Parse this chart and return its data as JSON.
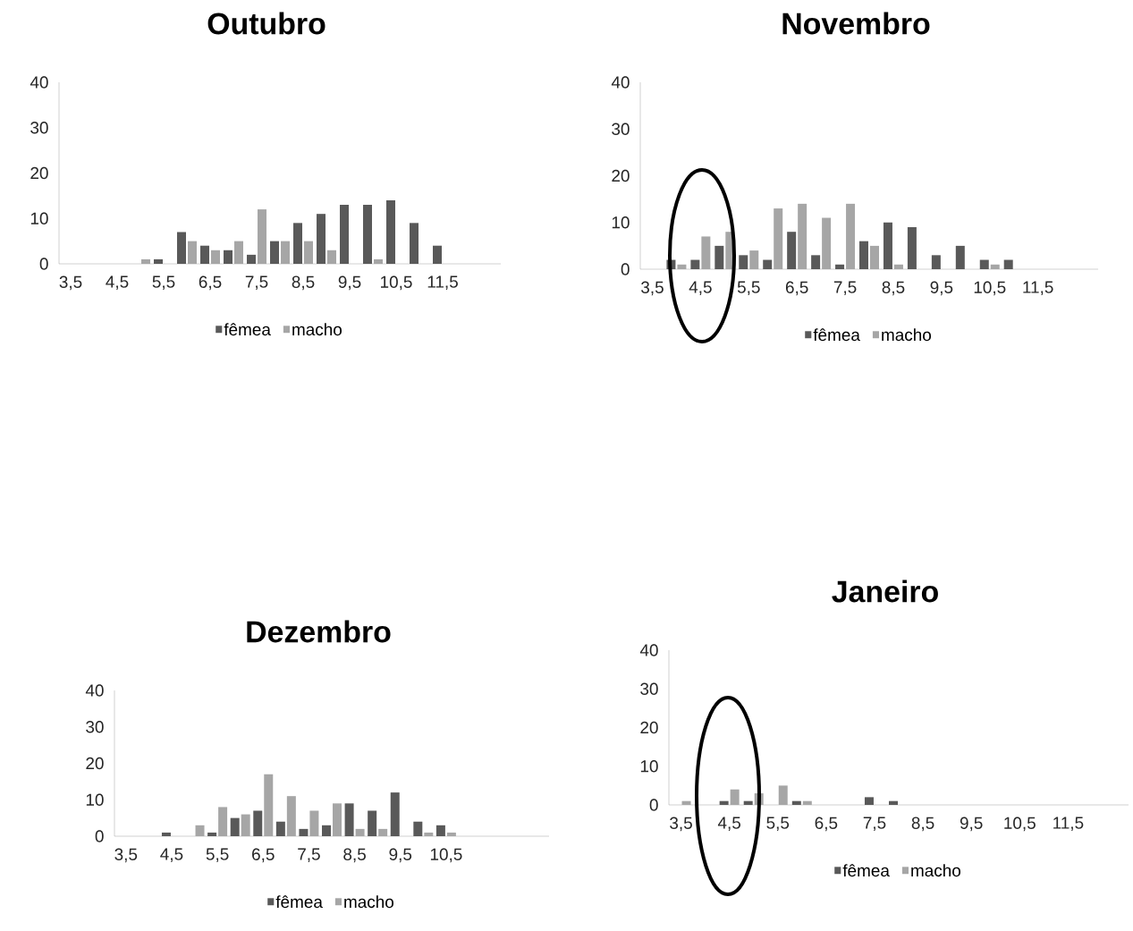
{
  "chart_data": [
    {
      "type": "bar",
      "title": "Outubro",
      "categories": [
        "3,5",
        null,
        "4,5",
        null,
        "5,5",
        null,
        "6,5",
        null,
        "7,5",
        null,
        "8,5",
        null,
        "9,5",
        null,
        "10,5",
        null,
        "11,5",
        null,
        null
      ],
      "series": [
        {
          "name": "fêmea",
          "color": "#595959",
          "values": [
            0,
            0,
            0,
            0,
            1,
            7,
            4,
            3,
            2,
            5,
            9,
            11,
            13,
            13,
            14,
            9,
            4,
            0,
            0
          ]
        },
        {
          "name": "macho",
          "color": "#a6a6a6",
          "values": [
            0,
            0,
            0,
            1,
            0,
            5,
            3,
            5,
            12,
            5,
            5,
            3,
            0,
            1,
            0,
            0,
            0,
            0,
            0
          ]
        }
      ],
      "ylim": [
        0,
        40
      ],
      "yticks": [
        0,
        10,
        20,
        30,
        40
      ],
      "legend": "bottom"
    },
    {
      "type": "bar",
      "title": "Novembro",
      "categories": [
        "3,5",
        null,
        "4,5",
        null,
        "5,5",
        null,
        "6,5",
        null,
        "7,5",
        null,
        "8,5",
        null,
        "9,5",
        null,
        "10,5",
        null,
        "11,5",
        null,
        null
      ],
      "series": [
        {
          "name": "fêmea",
          "color": "#595959",
          "values": [
            0,
            2,
            2,
            5,
            3,
            2,
            8,
            3,
            1,
            6,
            10,
            9,
            3,
            5,
            2,
            2,
            0,
            0,
            0
          ]
        },
        {
          "name": "macho",
          "color": "#a6a6a6",
          "values": [
            0,
            1,
            7,
            8,
            4,
            13,
            14,
            11,
            14,
            5,
            1,
            0,
            0,
            0,
            1,
            0,
            0,
            0,
            0
          ]
        }
      ],
      "ylim": [
        0,
        40
      ],
      "yticks": [
        0,
        10,
        20,
        30,
        40
      ],
      "legend": "bottom"
    },
    {
      "type": "bar",
      "title": "Dezembro",
      "categories": [
        "3,5",
        null,
        "4,5",
        null,
        "5,5",
        null,
        "6,5",
        null,
        "7,5",
        null,
        "8,5",
        null,
        "9,5",
        null,
        "10,5",
        null,
        null,
        null,
        null
      ],
      "series": [
        {
          "name": "fêmea",
          "color": "#595959",
          "values": [
            0,
            0,
            1,
            0,
            1,
            5,
            7,
            4,
            2,
            3,
            9,
            7,
            12,
            4,
            3,
            0,
            0,
            0,
            0
          ]
        },
        {
          "name": "macho",
          "color": "#a6a6a6",
          "values": [
            0,
            0,
            0,
            3,
            8,
            6,
            17,
            11,
            7,
            9,
            2,
            2,
            0,
            1,
            1,
            0,
            0,
            0,
            0
          ]
        }
      ],
      "ylim": [
        0,
        40
      ],
      "yticks": [
        0,
        10,
        20,
        30,
        40
      ],
      "legend": "bottom"
    },
    {
      "type": "bar",
      "title": "Janeiro",
      "categories": [
        "3,5",
        null,
        "4,5",
        null,
        "5,5",
        null,
        "6,5",
        null,
        "7,5",
        null,
        "8,5",
        null,
        "9,5",
        null,
        "10,5",
        null,
        "11,5",
        null,
        null
      ],
      "series": [
        {
          "name": "fêmea",
          "color": "#595959",
          "values": [
            0,
            0,
            1,
            1,
            0,
            1,
            0,
            0,
            2,
            1,
            0,
            0,
            0,
            0,
            0,
            0,
            0,
            0,
            0
          ]
        },
        {
          "name": "macho",
          "color": "#a6a6a6",
          "values": [
            1,
            0,
            4,
            3,
            5,
            1,
            0,
            0,
            0,
            0,
            0,
            0,
            0,
            0,
            0,
            0,
            0,
            0,
            0
          ]
        }
      ],
      "ylim": [
        0,
        40
      ],
      "yticks": [
        0,
        10,
        20,
        30,
        40
      ],
      "legend": "bottom"
    }
  ]
}
